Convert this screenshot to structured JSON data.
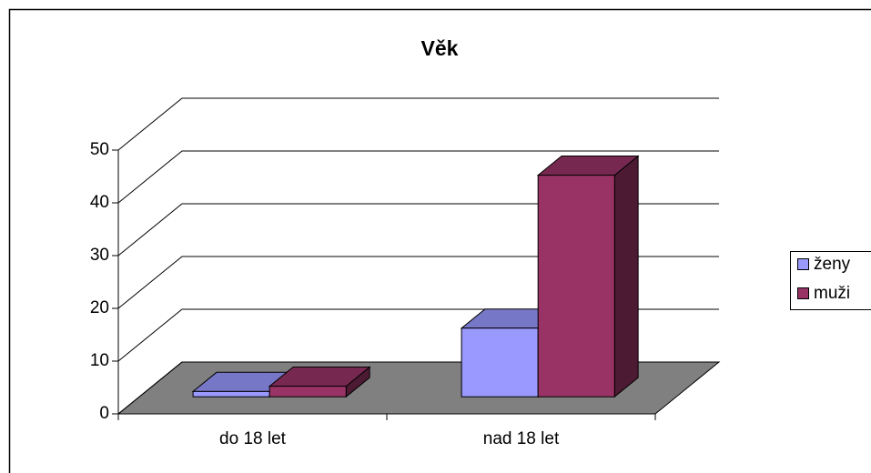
{
  "chart_data": {
    "type": "bar3d",
    "title": "Věk",
    "categories": [
      "do 18 let",
      "nad 18 let"
    ],
    "series": [
      {
        "name": "ženy",
        "color": "#9999ff",
        "values": [
          1,
          13
        ]
      },
      {
        "name": "muži",
        "color": "#993366",
        "values": [
          2,
          42
        ]
      }
    ],
    "ylim": [
      0,
      50
    ],
    "yticks": [
      0,
      10,
      20,
      30,
      40,
      50
    ],
    "grid": true,
    "legend": "right"
  }
}
